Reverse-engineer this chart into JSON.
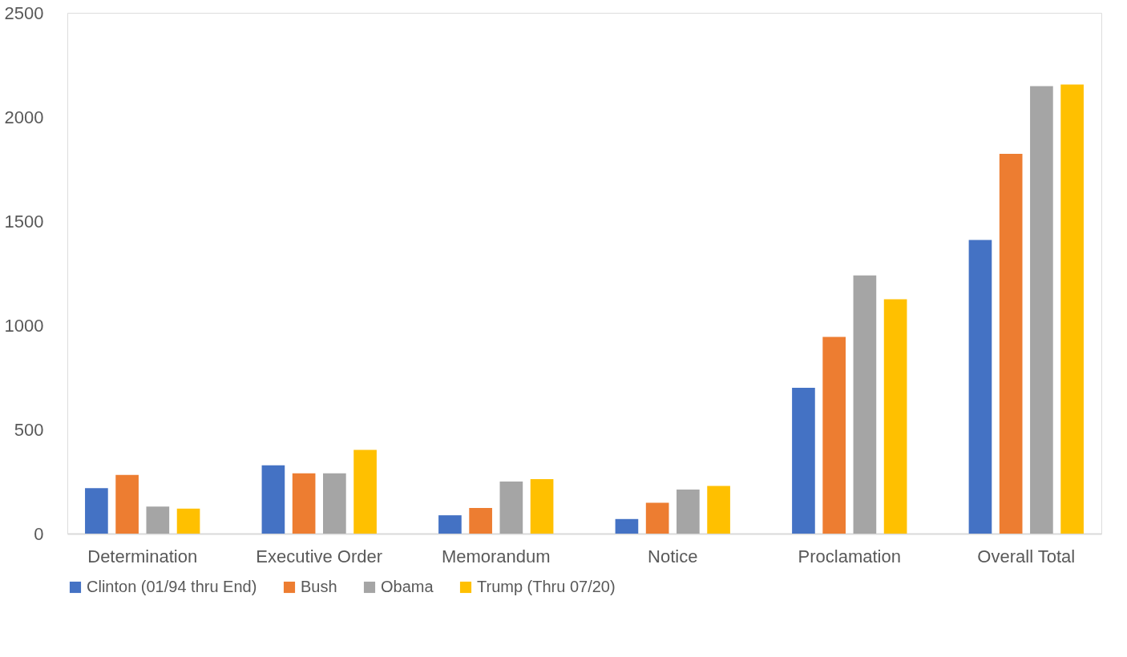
{
  "chart_data": {
    "type": "bar",
    "categories": [
      "Determination",
      "Executive Order",
      "Memorandum",
      "Notice",
      "Proclamation",
      "Overall Total"
    ],
    "series": [
      {
        "name": "Clinton (01/94 thru End)",
        "color": "#4472c4",
        "values": [
          218,
          328,
          88,
          70,
          700,
          1410
        ]
      },
      {
        "name": "Bush",
        "color": "#ed7d31",
        "values": [
          282,
          289,
          123,
          148,
          944,
          1823
        ]
      },
      {
        "name": "Obama",
        "color": "#a5a5a5",
        "values": [
          130,
          289,
          250,
          212,
          1239,
          2148
        ]
      },
      {
        "name": "Trump (Thru 07/20)",
        "color": "#ffc000",
        "values": [
          120,
          402,
          262,
          229,
          1125,
          2156
        ]
      }
    ],
    "ylim": [
      0,
      2500
    ],
    "yticks": [
      0,
      500,
      1000,
      1500,
      2000,
      2500
    ],
    "grid": false,
    "legend": "bottom"
  }
}
